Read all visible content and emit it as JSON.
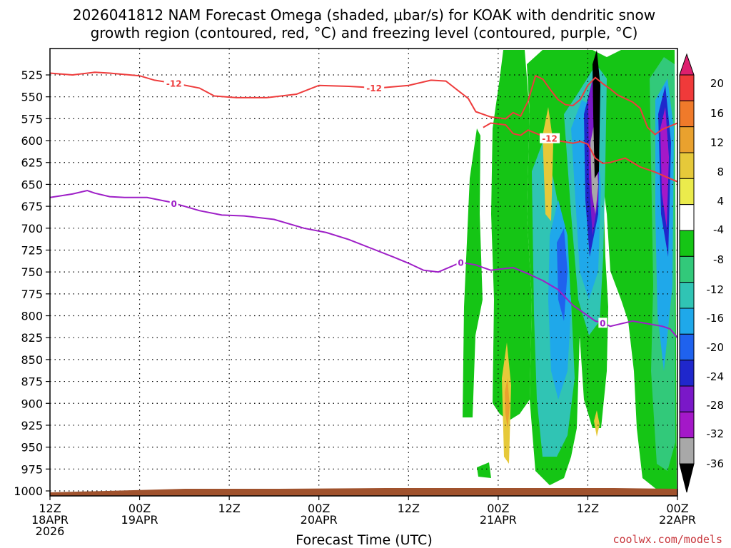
{
  "chart_data": {
    "type": "heatmap",
    "title_lines": [
      "2026041812 NAM Forecast Omega (shaded, μbar/s) for KOAK with dendritic snow",
      "growth region (contoured, red, °C) and freezing level (contoured, purple, °C)"
    ],
    "xlabel": "Forecast Time (UTC)",
    "credit": "coolwx.com/models",
    "x_range_hours": [
      0,
      84
    ],
    "y_range_hpa": [
      1000,
      505
    ],
    "x_ticks": [
      {
        "hour": 0,
        "l1": "12Z",
        "l2": "18APR",
        "l3": "2026"
      },
      {
        "hour": 12,
        "l1": "00Z",
        "l2": "19APR",
        "l3": ""
      },
      {
        "hour": 24,
        "l1": "12Z",
        "l2": "",
        "l3": ""
      },
      {
        "hour": 36,
        "l1": "00Z",
        "l2": "20APR",
        "l3": ""
      },
      {
        "hour": 48,
        "l1": "12Z",
        "l2": "",
        "l3": ""
      },
      {
        "hour": 60,
        "l1": "00Z",
        "l2": "21APR",
        "l3": ""
      },
      {
        "hour": 72,
        "l1": "12Z",
        "l2": "",
        "l3": ""
      },
      {
        "hour": 84,
        "l1": "00Z",
        "l2": "22APR",
        "l3": ""
      }
    ],
    "y_ticks": [
      "525",
      "550",
      "575",
      "600",
      "625",
      "650",
      "675",
      "700",
      "725",
      "750",
      "775",
      "800",
      "825",
      "850",
      "875",
      "900",
      "925",
      "950",
      "975",
      "1000"
    ],
    "colorbar": {
      "levels": [
        "20",
        "16",
        "12",
        "8",
        "4",
        "-4",
        "-8",
        "-12",
        "-16",
        "-20",
        "-24",
        "-28",
        "-32",
        "-36"
      ],
      "colors": [
        "#dd1f6e",
        "#f03a3a",
        "#f07a2a",
        "#e9a12e",
        "#e6c93a",
        "#ebeb4c",
        "#ffffff",
        "#15c515",
        "#32c97a",
        "#30c4b4",
        "#1fa8ea",
        "#1f62ee",
        "#1f27cc",
        "#7a18c8",
        "#a418c8",
        "#a8a8a8",
        "#000000"
      ]
    },
    "series": [
      {
        "name": "freezing level (0 °C)",
        "color": "#9e1fc7",
        "label": "0",
        "points": [
          [
            0,
            665
          ],
          [
            3,
            661
          ],
          [
            5,
            657
          ],
          [
            6,
            660
          ],
          [
            8,
            664
          ],
          [
            10,
            665
          ],
          [
            13,
            665
          ],
          [
            16,
            670
          ],
          [
            18,
            675
          ],
          [
            20,
            680
          ],
          [
            23,
            685
          ],
          [
            26,
            686
          ],
          [
            30,
            690
          ],
          [
            34,
            700
          ],
          [
            37,
            705
          ],
          [
            40,
            713
          ],
          [
            43,
            723
          ],
          [
            46,
            733
          ],
          [
            48,
            740
          ],
          [
            50,
            748
          ],
          [
            52,
            750
          ],
          [
            55,
            739
          ],
          [
            57,
            742
          ],
          [
            59,
            748
          ],
          [
            62,
            745
          ],
          [
            64,
            752
          ],
          [
            66,
            760
          ],
          [
            68,
            770
          ],
          [
            70,
            788
          ],
          [
            72,
            800
          ],
          [
            73,
            806
          ],
          [
            74,
            808
          ],
          [
            75,
            812
          ],
          [
            76,
            810
          ],
          [
            78,
            806
          ],
          [
            80,
            809
          ],
          [
            82,
            812
          ],
          [
            83,
            815
          ],
          [
            84,
            825
          ]
        ],
        "label_hours": [
          16.6,
          55.0,
          74.0
        ]
      },
      {
        "name": "dendritic growth region (-12 °C)",
        "color": "#ee3c3c",
        "label": "-12",
        "points": [
          [
            0,
            523
          ],
          [
            3,
            525
          ],
          [
            6,
            522
          ],
          [
            8,
            523
          ],
          [
            12,
            526
          ],
          [
            14,
            531
          ],
          [
            17,
            535
          ],
          [
            20,
            540
          ],
          [
            22,
            549
          ],
          [
            25,
            551
          ],
          [
            29,
            551
          ],
          [
            33,
            547
          ],
          [
            36,
            537
          ],
          [
            40,
            538
          ],
          [
            44,
            540
          ],
          [
            48,
            537
          ],
          [
            51,
            531
          ],
          [
            53,
            532
          ],
          [
            56,
            552
          ],
          [
            57,
            567
          ],
          [
            59,
            573
          ],
          [
            61,
            575
          ],
          [
            62,
            568
          ],
          [
            63,
            572
          ],
          [
            64,
            555
          ],
          [
            65,
            526
          ],
          [
            66,
            530
          ],
          [
            67,
            542
          ],
          [
            68,
            553
          ],
          [
            69,
            559
          ],
          [
            70,
            560
          ],
          [
            71,
            553
          ],
          [
            72,
            537
          ],
          [
            73,
            528
          ],
          [
            74,
            535
          ],
          [
            75,
            541
          ],
          [
            76,
            548
          ],
          [
            77,
            552
          ],
          [
            78,
            556
          ],
          [
            79,
            563
          ],
          [
            80,
            585
          ],
          [
            81,
            593
          ],
          [
            82,
            587
          ],
          [
            84,
            580
          ]
        ],
        "label_hours": [
          16.6,
          43.4
        ]
      },
      {
        "name": "dendritic growth region lower (-12 °C)",
        "color": "#ee3c3c",
        "label": "-12",
        "points": [
          [
            58,
            585
          ],
          [
            59,
            580
          ],
          [
            61,
            582
          ],
          [
            62,
            592
          ],
          [
            63,
            594
          ],
          [
            64,
            588
          ],
          [
            66,
            595
          ],
          [
            68,
            600
          ],
          [
            70,
            603
          ],
          [
            71,
            601
          ],
          [
            72,
            604
          ],
          [
            73,
            620
          ],
          [
            74,
            626
          ],
          [
            75,
            625
          ],
          [
            77,
            620
          ],
          [
            79,
            630
          ],
          [
            81,
            636
          ],
          [
            84,
            647
          ]
        ],
        "label_hours": [
          66.9
        ]
      }
    ]
  }
}
